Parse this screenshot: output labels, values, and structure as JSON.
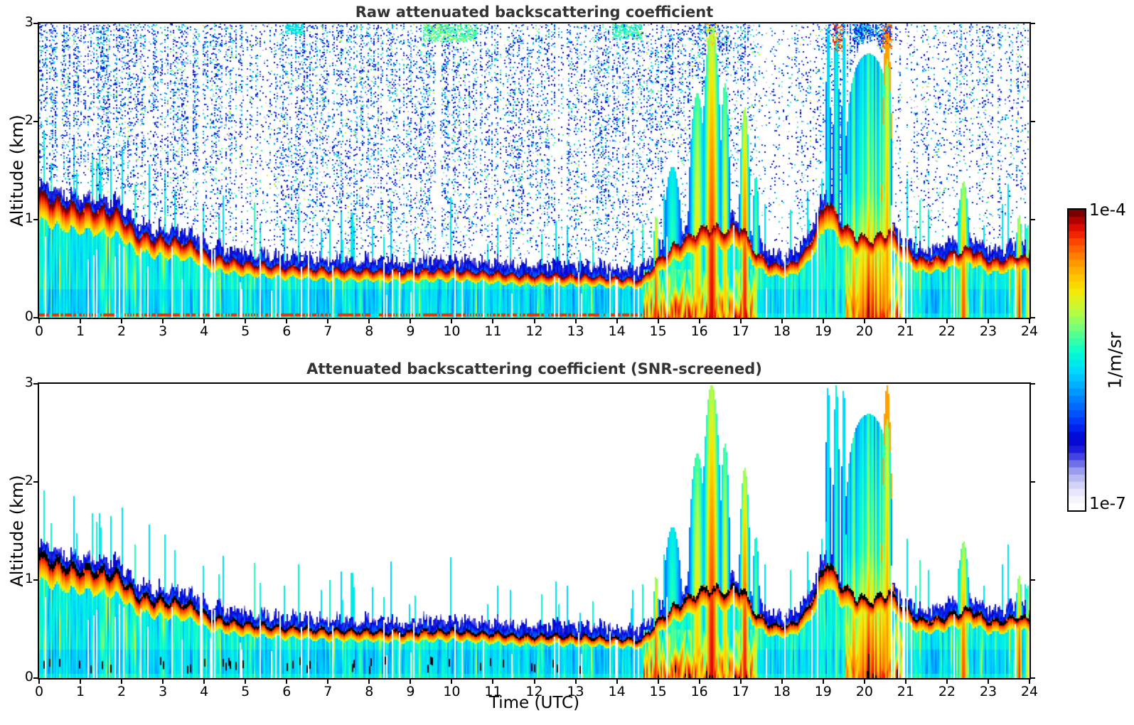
{
  "chart_data": {
    "type": "heatmap",
    "panels": [
      {
        "title": "Raw attenuated backscattering coefficient",
        "noise_speckle": true,
        "overrange_color": "#6e0000"
      },
      {
        "title": "Attenuated backscattering coefficient (SNR-screened)",
        "noise_speckle": false,
        "overrange_color": "#000000"
      }
    ],
    "x_axis": {
      "label": "Time (UTC)",
      "min": 0,
      "max": 24,
      "ticks": [
        0,
        1,
        2,
        3,
        4,
        5,
        6,
        7,
        8,
        9,
        10,
        11,
        12,
        13,
        14,
        15,
        16,
        17,
        18,
        19,
        20,
        21,
        22,
        23,
        24
      ]
    },
    "y_axis": {
      "label": "Altitude (km)",
      "min": 0,
      "max": 3,
      "ticks": [
        0,
        1,
        2,
        3
      ]
    },
    "colorbar": {
      "unit_label": "1/m/sr",
      "max_label": "1e-4",
      "min_label": "1e-7",
      "scale": "log",
      "min_value": 1e-07,
      "max_value": 0.0001,
      "steps": 42,
      "colormap_anchors": [
        [
          0.0,
          "#ffffff"
        ],
        [
          0.03,
          "#f2f2fd"
        ],
        [
          0.06,
          "#e0e0fa"
        ],
        [
          0.09,
          "#c2c2f5"
        ],
        [
          0.12,
          "#9e9ef0"
        ],
        [
          0.15,
          "#6a6ae8"
        ],
        [
          0.19,
          "#2020dc"
        ],
        [
          0.23,
          "#0000cd"
        ],
        [
          0.27,
          "#0024f2"
        ],
        [
          0.32,
          "#0054ff"
        ],
        [
          0.37,
          "#0084ff"
        ],
        [
          0.42,
          "#00b4ff"
        ],
        [
          0.46,
          "#00d8ff"
        ],
        [
          0.5,
          "#00f0e4"
        ],
        [
          0.54,
          "#14ffc4"
        ],
        [
          0.58,
          "#4cff98"
        ],
        [
          0.62,
          "#84ff6c"
        ],
        [
          0.66,
          "#b4fc44"
        ],
        [
          0.7,
          "#dcf424"
        ],
        [
          0.74,
          "#f8e600"
        ],
        [
          0.78,
          "#ffc600"
        ],
        [
          0.82,
          "#ffa200"
        ],
        [
          0.86,
          "#ff7a00"
        ],
        [
          0.895,
          "#ff4e00"
        ],
        [
          0.925,
          "#f22800"
        ],
        [
          0.95,
          "#dc0e00"
        ],
        [
          0.975,
          "#b40000"
        ],
        [
          1.0,
          "#7a0000"
        ]
      ]
    },
    "boundary_layer_top_km": [
      [
        0,
        1.27
      ],
      [
        0.5,
        1.2
      ],
      [
        1,
        1.13
      ],
      [
        1.5,
        1.12
      ],
      [
        2,
        1.07
      ],
      [
        2.3,
        0.88
      ],
      [
        2.8,
        0.82
      ],
      [
        3.3,
        0.8
      ],
      [
        3.8,
        0.76
      ],
      [
        4.1,
        0.64
      ],
      [
        4.6,
        0.6
      ],
      [
        5,
        0.57
      ],
      [
        5.5,
        0.55
      ],
      [
        6,
        0.53
      ],
      [
        6.5,
        0.52
      ],
      [
        7,
        0.51
      ],
      [
        7.5,
        0.5
      ],
      [
        8,
        0.5
      ],
      [
        8.5,
        0.49
      ],
      [
        9,
        0.48
      ],
      [
        9.5,
        0.5
      ],
      [
        10,
        0.5
      ],
      [
        10.5,
        0.48
      ],
      [
        11,
        0.47
      ],
      [
        11.5,
        0.45
      ],
      [
        12,
        0.44
      ],
      [
        12.5,
        0.45
      ],
      [
        13,
        0.44
      ],
      [
        13.5,
        0.43
      ],
      [
        14,
        0.42
      ],
      [
        14.6,
        0.4
      ],
      [
        15,
        0.6
      ],
      [
        15.4,
        0.75
      ],
      [
        15.8,
        0.85
      ],
      [
        16.2,
        0.95
      ],
      [
        16.6,
        0.9
      ],
      [
        17,
        0.95
      ],
      [
        17.4,
        0.65
      ],
      [
        17.8,
        0.55
      ],
      [
        18.2,
        0.55
      ],
      [
        18.6,
        0.7
      ],
      [
        18.9,
        1.0
      ],
      [
        19.1,
        1.25
      ],
      [
        19.4,
        1.0
      ],
      [
        19.8,
        0.85
      ],
      [
        20.2,
        0.8
      ],
      [
        20.6,
        0.9
      ],
      [
        21,
        0.72
      ],
      [
        21.4,
        0.6
      ],
      [
        21.8,
        0.62
      ],
      [
        22.2,
        0.68
      ],
      [
        22.6,
        0.72
      ],
      [
        23,
        0.6
      ],
      [
        23.4,
        0.6
      ],
      [
        23.7,
        0.65
      ],
      [
        24,
        0.6
      ]
    ],
    "plumes": [
      {
        "t": 14.95,
        "w": 0.18,
        "top": 1.05,
        "core": 0.95
      },
      {
        "t": 15.35,
        "w": 0.55,
        "top": 1.55,
        "core": 0.6
      },
      {
        "t": 15.95,
        "w": 0.5,
        "top": 2.3,
        "core": 0.78
      },
      {
        "t": 16.3,
        "w": 0.55,
        "top": 3.0,
        "core": 0.96
      },
      {
        "t": 16.62,
        "w": 0.3,
        "top": 2.4,
        "core": 0.78
      },
      {
        "t": 17.1,
        "w": 0.32,
        "top": 2.15,
        "core": 0.95
      },
      {
        "t": 17.37,
        "w": 0.22,
        "top": 1.45,
        "core": 0.68
      },
      {
        "t": 19.12,
        "w": 0.16,
        "top": 3.0,
        "core": 0.56
      },
      {
        "t": 19.32,
        "w": 0.2,
        "top": 3.0,
        "core": 0.62
      },
      {
        "t": 19.5,
        "w": 0.14,
        "top": 3.0,
        "core": 0.58
      },
      {
        "t": 20.1,
        "w": 1.1,
        "top": 2.7,
        "core": 0.66,
        "broad": true
      },
      {
        "t": 20.55,
        "w": 0.3,
        "top": 3.0,
        "core": 0.85,
        "hot_top": true
      },
      {
        "t": 22.4,
        "w": 0.35,
        "top": 1.4,
        "core": 0.9
      },
      {
        "t": 23.75,
        "w": 0.22,
        "top": 1.05,
        "core": 0.93
      },
      {
        "t": 23.95,
        "w": 0.1,
        "top": 1.0,
        "core": 0.85
      }
    ],
    "surface_events": [
      {
        "t0": 14.65,
        "t1": 17.35,
        "top": 0.5,
        "v": 0.85
      },
      {
        "t0": 19.55,
        "t1": 20.9,
        "top": 0.75,
        "v": 0.8
      }
    ],
    "data_gap_hours": [
      3.92,
      20.96
    ],
    "noise": {
      "density_by_time": [
        [
          0,
          1.0
        ],
        [
          9,
          1.05
        ],
        [
          14.5,
          0.95
        ],
        [
          15.5,
          0.75
        ],
        [
          17,
          0.5
        ],
        [
          17.6,
          0.28
        ],
        [
          18.9,
          0.55
        ],
        [
          19.6,
          0.8
        ],
        [
          20.8,
          0.5
        ],
        [
          21.5,
          0.55
        ],
        [
          23,
          0.6
        ],
        [
          24,
          0.65
        ]
      ]
    },
    "top_edge_features": [
      {
        "t0": 5.95,
        "t1": 6.4,
        "y0": 2.9,
        "v": 0.5
      },
      {
        "t0": 9.3,
        "t1": 10.6,
        "y0": 2.82,
        "v": 0.58
      },
      {
        "t0": 13.9,
        "t1": 14.6,
        "y0": 2.85,
        "v": 0.55
      },
      {
        "t0": 16.15,
        "t1": 16.45,
        "y0": 2.78,
        "v": 0.72
      },
      {
        "t0": 19.22,
        "t1": 19.48,
        "y0": 2.72,
        "v": 0.9
      },
      {
        "t0": 20.45,
        "t1": 20.68,
        "y0": 2.75,
        "v": 0.88
      }
    ]
  }
}
